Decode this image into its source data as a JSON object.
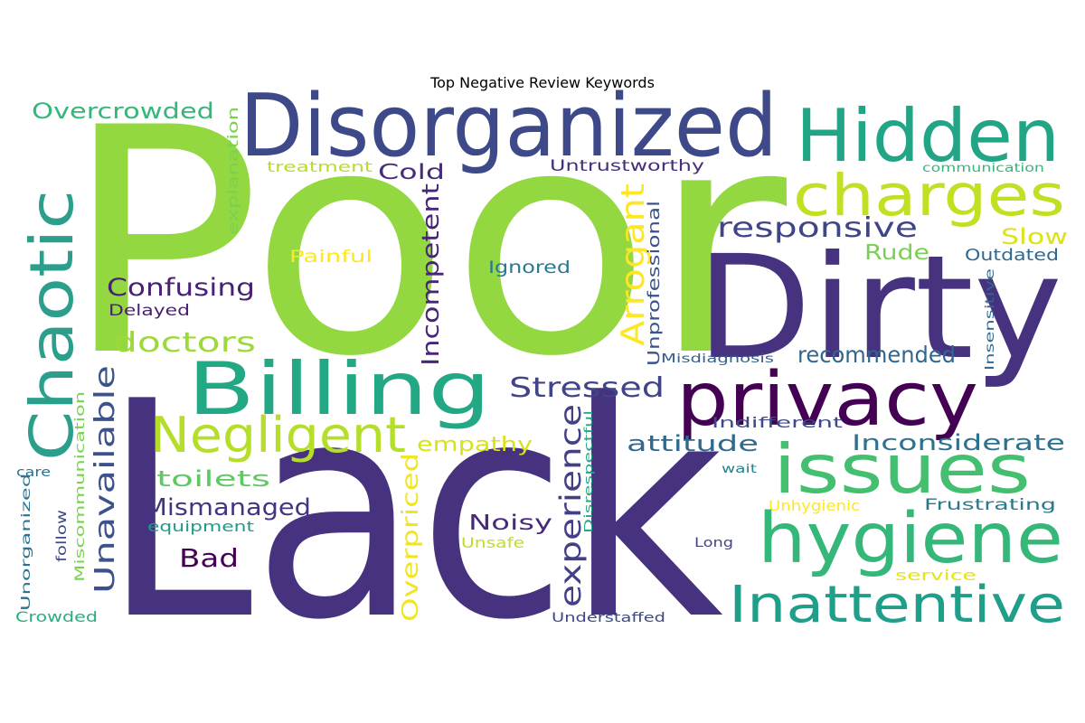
{
  "chart_data": {
    "type": "wordcloud",
    "title": "Top Negative Review Keywords",
    "words": [
      {
        "text": "Poor",
        "color": "#93d741"
      },
      {
        "text": "Lack",
        "color": "#46327e"
      },
      {
        "text": "Dirty",
        "color": "#46327e"
      },
      {
        "text": "Disorganized",
        "color": "#3e4989"
      },
      {
        "text": "Hidden",
        "color": "#21a585"
      },
      {
        "text": "charges",
        "color": "#c2df23"
      },
      {
        "text": "hygiene",
        "color": "#35b779"
      },
      {
        "text": "issues",
        "color": "#44bf70"
      },
      {
        "text": "privacy",
        "color": "#440154"
      },
      {
        "text": "Billing",
        "color": "#22a884"
      },
      {
        "text": "Chaotic",
        "color": "#2c9f8c"
      },
      {
        "text": "Inattentive",
        "color": "#1f9e89"
      },
      {
        "text": "Negligent",
        "color": "#b5de2b"
      },
      {
        "text": "Arrogant",
        "color": "#fde725"
      },
      {
        "text": "responsive",
        "color": "#404588"
      },
      {
        "text": "Unavailable",
        "color": "#3b528b"
      },
      {
        "text": "experience",
        "color": "#424086"
      },
      {
        "text": "Incompetent",
        "color": "#482576"
      },
      {
        "text": "Stressed",
        "color": "#414487"
      },
      {
        "text": "doctors",
        "color": "#9dd93b"
      },
      {
        "text": "Confusing",
        "color": "#482173"
      },
      {
        "text": "Overpriced",
        "color": "#f1e51d"
      },
      {
        "text": "Mismanaged",
        "color": "#463480"
      },
      {
        "text": "recommended",
        "color": "#31668e"
      },
      {
        "text": "Inconsiderate",
        "color": "#2c728e"
      },
      {
        "text": "attitude",
        "color": "#31688e"
      },
      {
        "text": "Overcrowded",
        "color": "#35b779"
      },
      {
        "text": "toilets",
        "color": "#5ec962"
      },
      {
        "text": "Bad",
        "color": "#440154"
      },
      {
        "text": "Noisy",
        "color": "#472a7a"
      },
      {
        "text": "empathy",
        "color": "#d8e219"
      },
      {
        "text": "Slow",
        "color": "#dde318"
      },
      {
        "text": "Rude",
        "color": "#7ad151"
      },
      {
        "text": "Cold",
        "color": "#472c7a"
      },
      {
        "text": "Unprofessional",
        "color": "#3b528b"
      },
      {
        "text": "Ignored",
        "color": "#2a788e"
      },
      {
        "text": "Painful",
        "color": "#fde725"
      },
      {
        "text": "Outdated",
        "color": "#31688e"
      },
      {
        "text": "Untrustworthy",
        "color": "#472d7b"
      },
      {
        "text": "explanation",
        "color": "#7ad151"
      },
      {
        "text": "treatment",
        "color": "#b5de2b"
      },
      {
        "text": "Indifferent",
        "color": "#3e4989"
      },
      {
        "text": "Frustrating",
        "color": "#2a788e"
      },
      {
        "text": "Unhygienic",
        "color": "#fde725"
      },
      {
        "text": "Delayed",
        "color": "#481f70"
      },
      {
        "text": "Crowded",
        "color": "#29af7f"
      },
      {
        "text": "equipment",
        "color": "#1f9a8a"
      },
      {
        "text": "follow",
        "color": "#3e4a89"
      },
      {
        "text": "Miscommunication",
        "color": "#7ad151"
      },
      {
        "text": "Unsafe",
        "color": "#bddf26"
      },
      {
        "text": "care",
        "color": "#2c728e"
      },
      {
        "text": "Unorganized",
        "color": "#2c728e"
      },
      {
        "text": "Insensitive",
        "color": "#31688e"
      },
      {
        "text": "service",
        "color": "#e5e419"
      },
      {
        "text": "Long",
        "color": "#414487"
      },
      {
        "text": "Understaffed",
        "color": "#3e4989"
      },
      {
        "text": "wait",
        "color": "#26828e"
      },
      {
        "text": "Misdiagnosis",
        "color": "#355f8d"
      },
      {
        "text": "communication",
        "color": "#35b779"
      },
      {
        "text": "Disrespectful",
        "color": "#22a884"
      }
    ]
  }
}
